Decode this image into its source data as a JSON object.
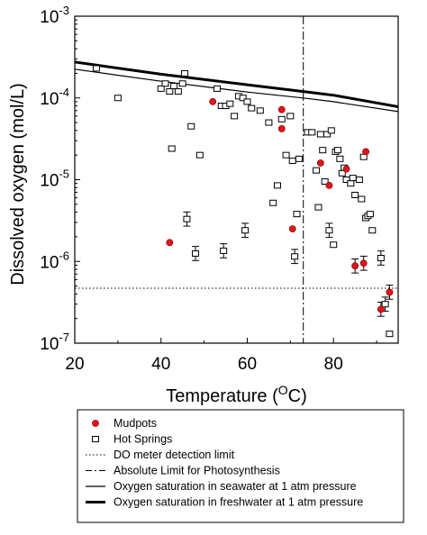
{
  "chart_data": {
    "type": "scatter",
    "xlabel": "Temperature (",
    "xlabel_sup": "O",
    "xlabel_tail": "C)",
    "ylabel": "Dissolved oxygen (mol/L)",
    "xlim": [
      20,
      95
    ],
    "ylim_log10": [
      -7,
      -3
    ],
    "y_scale": "log",
    "x_ticks": [
      20,
      40,
      60,
      80
    ],
    "y_ticks": [
      {
        "base": "10",
        "exp": "-7",
        "log": -7
      },
      {
        "base": "10",
        "exp": "-6",
        "log": -6
      },
      {
        "base": "10",
        "exp": "-5",
        "log": -5
      },
      {
        "base": "10",
        "exp": "-4",
        "log": -4
      },
      {
        "base": "10",
        "exp": "-3",
        "log": -3
      }
    ],
    "series": [
      {
        "name": "Mudpots",
        "marker": "filled-circle",
        "color": "#e0141c",
        "points": [
          [
            42,
            1.7e-06
          ],
          [
            52,
            9e-05
          ],
          [
            68,
            7.2e-05
          ],
          [
            68,
            4.2e-05
          ],
          [
            70.5,
            2.5e-06
          ],
          [
            77,
            1.6e-05
          ],
          [
            79,
            8.5e-06
          ],
          [
            83,
            1.35e-05
          ],
          [
            85,
            8.8e-07
          ],
          [
            87,
            9.5e-07
          ],
          [
            87.5,
            2.2e-05
          ],
          [
            91,
            2.6e-07
          ],
          [
            93,
            4.2e-07
          ]
        ]
      },
      {
        "name": "Hot Springs",
        "marker": "open-square",
        "color": "#000000",
        "points": [
          [
            25,
            0.00023
          ],
          [
            30,
            0.0001
          ],
          [
            40,
            0.00013
          ],
          [
            41,
            0.00015
          ],
          [
            42,
            0.00012
          ],
          [
            42.5,
            2.4e-05
          ],
          [
            43,
            0.00014
          ],
          [
            44,
            0.00012
          ],
          [
            45,
            0.00015
          ],
          [
            45.5,
            0.0002
          ],
          [
            46,
            3.3e-06
          ],
          [
            47,
            4.5e-05
          ],
          [
            48,
            1.25e-06
          ],
          [
            49,
            2e-05
          ],
          [
            53,
            0.00013
          ],
          [
            54,
            8e-05
          ],
          [
            54.5,
            1.35e-06
          ],
          [
            55,
            8e-05
          ],
          [
            56,
            8.5e-05
          ],
          [
            57,
            6e-05
          ],
          [
            58,
            0.000105
          ],
          [
            59,
            0.0001
          ],
          [
            59.5,
            2.4e-06
          ],
          [
            60,
            9e-05
          ],
          [
            61,
            7.5e-05
          ],
          [
            63,
            7e-05
          ],
          [
            65,
            5e-05
          ],
          [
            66,
            5.2e-06
          ],
          [
            67,
            8.5e-06
          ],
          [
            68,
            5.5e-05
          ],
          [
            69,
            2e-05
          ],
          [
            70,
            6e-05
          ],
          [
            70.5,
            1.7e-05
          ],
          [
            71,
            1.15e-06
          ],
          [
            71.5,
            3.8e-06
          ],
          [
            72,
            1.8e-05
          ],
          [
            74,
            3.8e-05
          ],
          [
            75,
            3.8e-05
          ],
          [
            76,
            1.3e-05
          ],
          [
            76.5,
            4.6e-06
          ],
          [
            77,
            3.6e-05
          ],
          [
            77.5,
            2.3e-05
          ],
          [
            78,
            9.5e-06
          ],
          [
            78.5,
            3.6e-05
          ],
          [
            79,
            2.4e-06
          ],
          [
            79.5,
            4e-05
          ],
          [
            80,
            1.6e-06
          ],
          [
            80.5,
            2.2e-05
          ],
          [
            81,
            2.3e-05
          ],
          [
            81.5,
            1.8e-05
          ],
          [
            82,
            1.2e-05
          ],
          [
            82.5,
            1.4e-05
          ],
          [
            83,
            1e-05
          ],
          [
            84,
            9e-06
          ],
          [
            84.5,
            1.05e-05
          ],
          [
            85,
            6.5e-06
          ],
          [
            86,
            1e-05
          ],
          [
            86.5,
            5.8e-06
          ],
          [
            87,
            1.9e-05
          ],
          [
            87.5,
            3.4e-06
          ],
          [
            88,
            3.6e-06
          ],
          [
            88.5,
            3.8e-06
          ],
          [
            89,
            2.4e-06
          ],
          [
            91,
            1.1e-06
          ],
          [
            92,
            3e-07
          ],
          [
            93,
            1.3e-07
          ]
        ]
      },
      {
        "name": "DO meter detection limit",
        "line_style": "dotted",
        "y_value": 4.7e-07
      },
      {
        "name": "Absolute Limit for Photosynthesis",
        "line_style": "dash-dot",
        "x_value": 73
      },
      {
        "name": "Oxygen saturation in seawater at 1 atm pressure",
        "line_style": "solid-thin",
        "points": [
          [
            20,
            0.000225
          ],
          [
            40,
            0.00016
          ],
          [
            60,
            0.000118
          ],
          [
            73,
            0.0001
          ],
          [
            80,
            9e-05
          ],
          [
            95,
            6.8e-05
          ]
        ]
      },
      {
        "name": "Oxygen saturation in freshwater at 1 atm pressure",
        "line_style": "solid-thick",
        "points": [
          [
            20,
            0.000275
          ],
          [
            40,
            0.000195
          ],
          [
            60,
            0.000145
          ],
          [
            73,
            0.00012
          ],
          [
            80,
            0.000108
          ],
          [
            95,
            7.8e-05
          ]
        ]
      }
    ],
    "error_bar_points": [
      [
        46,
        3.3e-06
      ],
      [
        48,
        1.25e-06
      ],
      [
        54.5,
        1.35e-06
      ],
      [
        59.5,
        2.4e-06
      ],
      [
        71,
        1.15e-06
      ],
      [
        79,
        2.4e-06
      ],
      [
        85,
        8.8e-07
      ],
      [
        87,
        9.5e-07
      ],
      [
        91,
        1.1e-06
      ],
      [
        91,
        2.6e-07
      ],
      [
        92,
        3e-07
      ],
      [
        93,
        4.2e-07
      ]
    ],
    "legend_position": "bottom",
    "grid": false
  }
}
